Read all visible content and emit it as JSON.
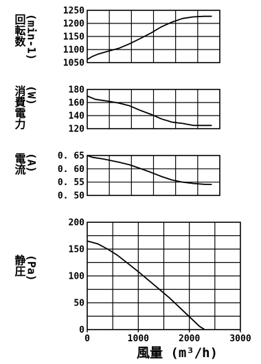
{
  "chart_data": [
    {
      "type": "line",
      "ylabel": "回転数\n(min-1)",
      "xlim": [
        0,
        2500
      ],
      "ylim": [
        1050,
        1250
      ],
      "yticks": [
        1250,
        1200,
        1150,
        1100,
        1050
      ],
      "grid": true,
      "x": [
        0,
        100,
        200,
        400,
        600,
        800,
        1000,
        1200,
        1400,
        1600,
        1800,
        2000,
        2200,
        2350
      ],
      "y": [
        1062,
        1074,
        1082,
        1094,
        1105,
        1122,
        1142,
        1163,
        1187,
        1205,
        1219,
        1225,
        1227,
        1227
      ]
    },
    {
      "type": "line",
      "ylabel": "消費電力\n(W)",
      "xlim": [
        0,
        2500
      ],
      "ylim": [
        120,
        180
      ],
      "yticks": [
        180,
        160,
        140,
        120
      ],
      "grid": true,
      "x": [
        0,
        150,
        400,
        600,
        800,
        1000,
        1200,
        1400,
        1600,
        1800,
        2000,
        2200,
        2350
      ],
      "y": [
        170,
        165,
        162,
        159,
        155,
        148,
        142,
        135,
        130,
        128,
        125,
        125,
        125
      ]
    },
    {
      "type": "line",
      "ylabel": "電流\n(A)",
      "xlim": [
        0,
        2500
      ],
      "ylim": [
        0.5,
        0.65
      ],
      "yticks": [
        "0.65",
        "0.60",
        "0.55",
        "0.50"
      ],
      "grid": true,
      "x": [
        0,
        100,
        300,
        600,
        800,
        1000,
        1200,
        1400,
        1600,
        1800,
        2000,
        2200,
        2350
      ],
      "y": [
        0.65,
        0.643,
        0.637,
        0.625,
        0.615,
        0.601,
        0.587,
        0.571,
        0.558,
        0.55,
        0.545,
        0.542,
        0.541
      ]
    },
    {
      "type": "line",
      "ylabel": "静圧\n(Pa)",
      "xlabel": "風量 (m³/h)",
      "xlim": [
        0,
        3000
      ],
      "ylim": [
        0,
        200
      ],
      "yticks": [
        200,
        150,
        100,
        50,
        0
      ],
      "xticks": [
        0,
        1000,
        2000,
        3000
      ],
      "grid": true,
      "x": [
        0,
        200,
        400,
        600,
        800,
        1000,
        1200,
        1400,
        1600,
        1800,
        2000,
        2200,
        2300
      ],
      "y": [
        165,
        160,
        150,
        138,
        123,
        108,
        92,
        76,
        60,
        42,
        24,
        6,
        0
      ]
    }
  ]
}
